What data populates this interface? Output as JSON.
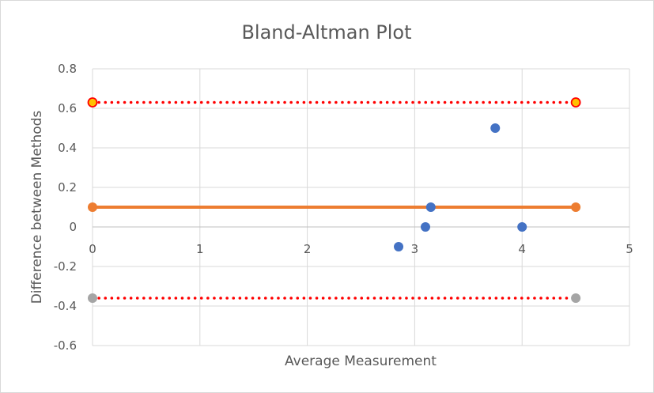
{
  "chart_data": {
    "type": "scatter",
    "title": "Bland-Altman Plot",
    "xlabel": "Average Measurement",
    "ylabel": "Difference between Methods",
    "xlim": [
      0,
      5
    ],
    "ylim": [
      -0.6,
      0.8
    ],
    "x_ticks": [
      "0",
      "1",
      "2",
      "3",
      "4",
      "5"
    ],
    "y_ticks": [
      "-0.6",
      "-0.4",
      "-0.2",
      "0",
      "0.2",
      "0.4",
      "0.6",
      "0.8"
    ],
    "grid": true,
    "legend": "none",
    "colors": {
      "points": "#4472c4",
      "mean_line": "#ed7d31",
      "upper_limit_line": "#ff0000",
      "upper_limit_marker_fill": "#ffc000",
      "lower_limit_line": "#ff0000",
      "lower_limit_marker": "#a5a5a5",
      "grid": "#d9d9d9"
    },
    "series": [
      {
        "kind": "points",
        "x": [
          2.85,
          3.1,
          3.15,
          3.75,
          4.0
        ],
        "y": [
          -0.1,
          0.0,
          0.1,
          0.5,
          0.0
        ]
      },
      {
        "kind": "mean-line",
        "x": [
          0,
          4.5
        ],
        "y": [
          0.1,
          0.1
        ]
      },
      {
        "kind": "upper-limit-line",
        "x": [
          0,
          4.5
        ],
        "y": [
          0.63,
          0.63
        ]
      },
      {
        "kind": "lower-limit-line",
        "x": [
          0,
          4.5
        ],
        "y": [
          -0.36,
          -0.36
        ]
      }
    ]
  }
}
